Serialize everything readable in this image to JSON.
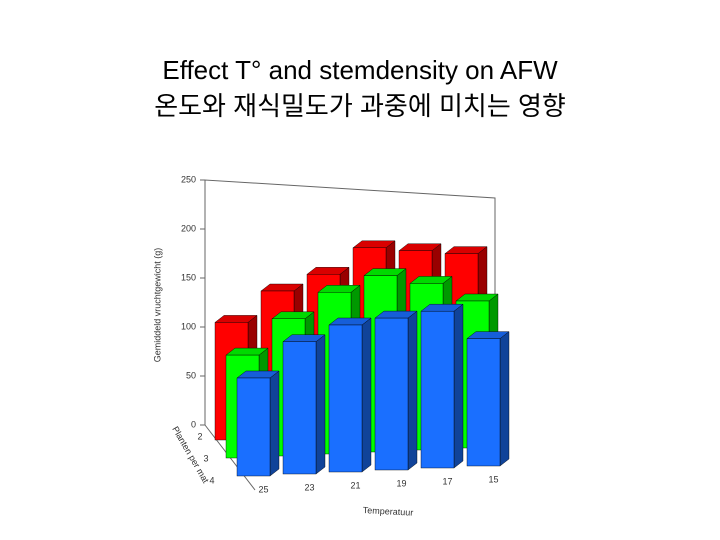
{
  "chart_data": {
    "type": "bar3d",
    "title": "Effect T° and stemdensity on AFW",
    "subtitle": "온도와 재식밀도가 과중에 미치는 영향",
    "y_label": "Gemiddeld vruchtgewicht (g)",
    "x_label": "Temperatuur",
    "z_label": "Planten per mat",
    "categories": [
      "25",
      "23",
      "21",
      "19",
      "17",
      "15"
    ],
    "series": [
      {
        "name": "2",
        "color": "#ff0000",
        "values": [
          120,
          150,
          165,
          190,
          185,
          180
        ]
      },
      {
        "name": "3",
        "color": "#00ff00",
        "values": [
          105,
          140,
          165,
          180,
          170,
          150
        ]
      },
      {
        "name": "4",
        "color": "#1a6fff",
        "values": [
          100,
          135,
          150,
          155,
          160,
          130
        ]
      }
    ],
    "ylim": [
      0,
      250
    ],
    "yticks": [
      0,
      50,
      100,
      150,
      200,
      250
    ]
  }
}
